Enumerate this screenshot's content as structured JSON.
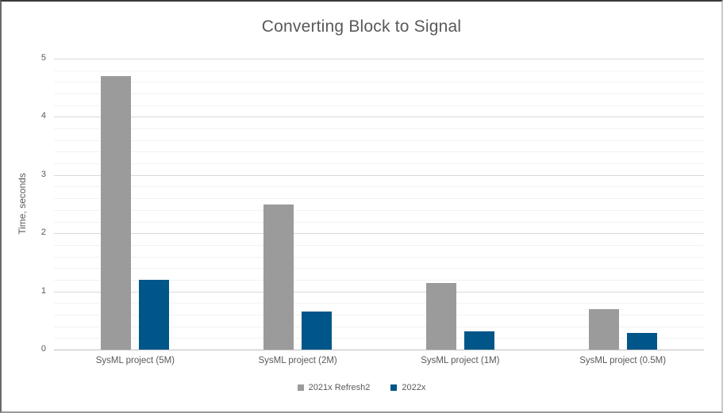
{
  "chart_data": {
    "type": "bar",
    "title": "Converting Block to Signal",
    "xlabel": "",
    "ylabel": "Time, seconds",
    "categories": [
      "SysML project (5M)",
      "SysML project (2M)",
      "SysML project (1M)",
      "SysML project (0.5M)"
    ],
    "series": [
      {
        "name": "2021x Refresh2",
        "color": "#9B9B9B",
        "values": [
          4.7,
          2.5,
          1.15,
          0.7
        ]
      },
      {
        "name": "2022x",
        "color": "#005689",
        "values": [
          1.2,
          0.65,
          0.32,
          0.28
        ]
      }
    ],
    "ylim": [
      0,
      5
    ],
    "y_ticks": [
      0,
      1,
      2,
      3,
      4,
      5
    ],
    "y_major_step": 1,
    "y_minor_step": 0.2,
    "grid": true,
    "legend_position": "bottom-center",
    "colors": {
      "background": "#FFFFFF",
      "text": "#595959",
      "major_gridline": "#D9D9D9",
      "minor_gridline": "#F2F2F2",
      "axis_baseline": "#BFBFBF"
    }
  }
}
